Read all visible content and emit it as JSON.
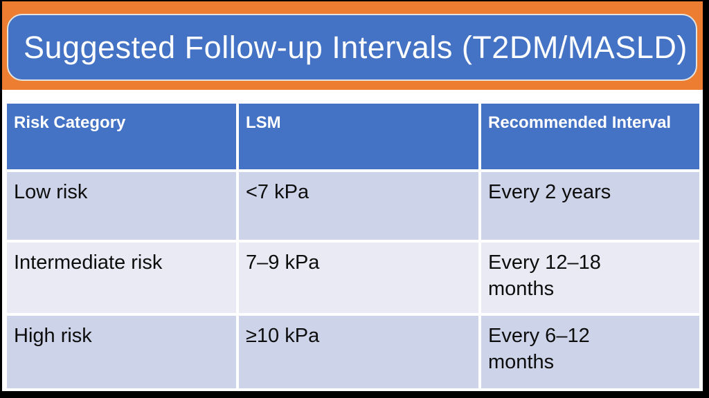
{
  "slide": {
    "title": "Suggested Follow-up Intervals (T2DM/MASLD)"
  },
  "colors": {
    "banner_orange": "#ED7D31",
    "title_blue": "#4472C4",
    "header_blue": "#4472C4",
    "row_band_dark": "#CDD3E8",
    "row_band_light": "#E9EAF4",
    "title_text": "#FFFFFF",
    "body_text": "#0D0D0D",
    "frame_border": "#000000"
  },
  "table": {
    "headers": [
      "Risk Category",
      "LSM",
      "Recommended Interval"
    ],
    "rows": [
      [
        "Low risk",
        "<7 kPa",
        "Every 2 years"
      ],
      [
        "Intermediate risk",
        "7–9 kPa",
        "Every 12–18\nmonths"
      ],
      [
        "High risk",
        "≥10 kPa",
        "Every 6–12\nmonths"
      ]
    ]
  }
}
